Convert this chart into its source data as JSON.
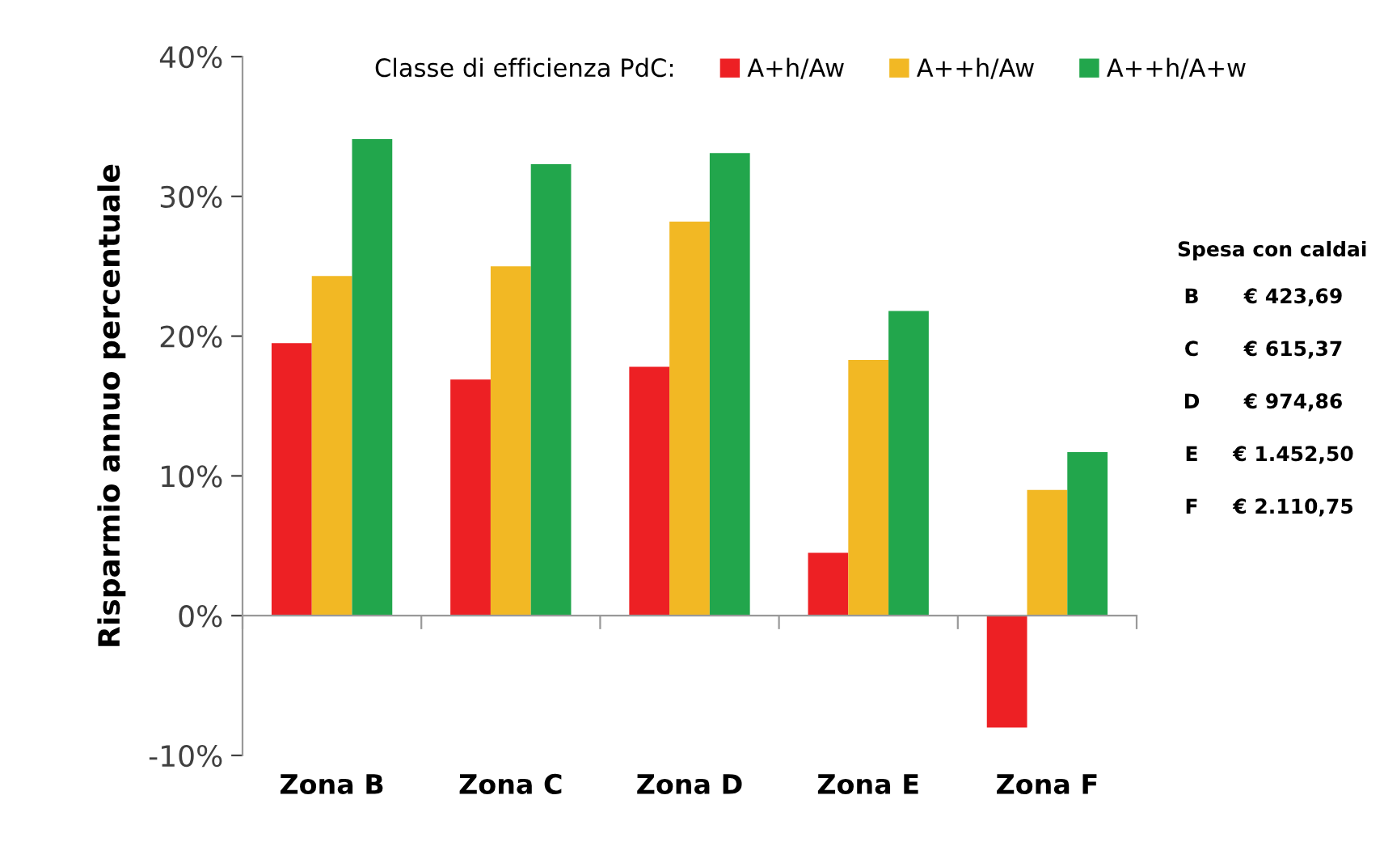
{
  "chart_data": {
    "type": "bar",
    "ylabel": "Risparmio annuo percentuale",
    "legend_title": "Classe di efficienza PdC:",
    "categories": [
      "Zona B",
      "Zona C",
      "Zona D",
      "Zona E",
      "Zona F"
    ],
    "series": [
      {
        "name": "A+h/Aw",
        "color": "#ed2024",
        "values": [
          19.5,
          16.9,
          17.8,
          4.5,
          -8.0
        ]
      },
      {
        "name": "A++h/Aw",
        "color": "#f2b824",
        "values": [
          24.3,
          25.0,
          28.2,
          18.3,
          9.0
        ]
      },
      {
        "name": "A++h/A+w",
        "color": "#22a64c",
        "values": [
          34.1,
          32.3,
          33.1,
          21.8,
          11.7
        ]
      }
    ],
    "ylim": [
      -10,
      40
    ],
    "yticks": [
      {
        "value": -10,
        "label": "-10%"
      },
      {
        "value": 0,
        "label": "0%"
      },
      {
        "value": 10,
        "label": "10%"
      },
      {
        "value": 20,
        "label": "20%"
      },
      {
        "value": 30,
        "label": "30%"
      },
      {
        "value": 40,
        "label": "40%"
      }
    ],
    "legend": "top",
    "annotations": [
      "Spesa con caldai",
      "B",
      "€ 423,69",
      "C",
      "€ 615,37",
      "D",
      "€ 974,86",
      "E",
      "€ 1.452,50",
      "F",
      "€ 2.110,75"
    ]
  }
}
